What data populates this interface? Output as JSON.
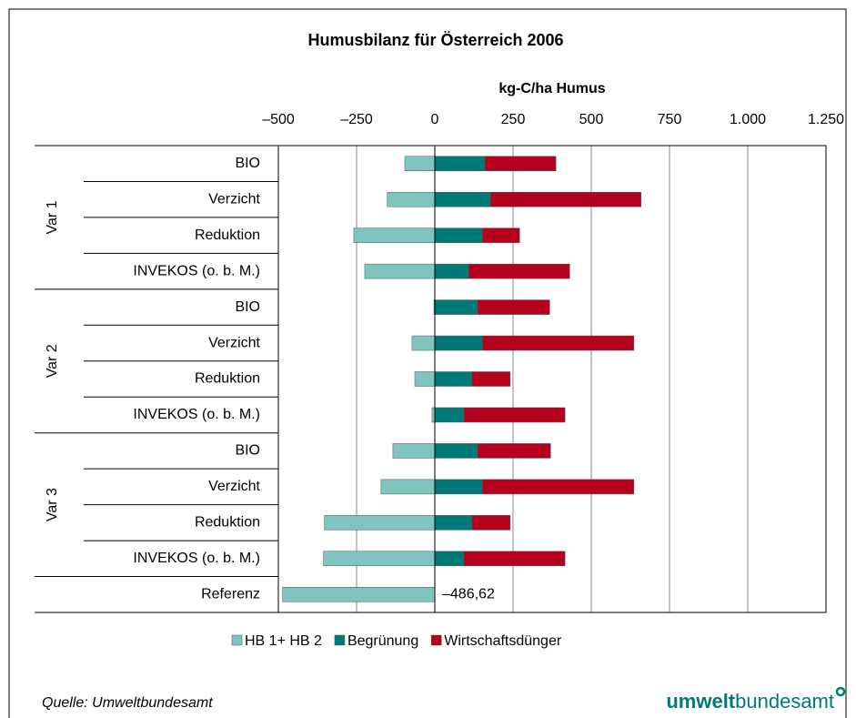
{
  "chart_data": {
    "type": "stacked-barh",
    "title": "Humusbilanz für Österreich 2006",
    "xlabel": "kg-C/ha Humus",
    "source": "Quelle: Umweltbundesamt",
    "logo": {
      "bold": "umwelt",
      "regular": "bundesamt"
    },
    "categories": [
      "BIO",
      "Verzicht",
      "Reduktion",
      "INVEKOS (o. b. M.)",
      "BIO",
      "Verzicht",
      "Reduktion",
      "INVEKOS (o. b. M.)",
      "BIO",
      "Verzicht",
      "Reduktion",
      "INVEKOS (o. b. M.)",
      "Referenz"
    ],
    "groups": [
      "Var 1",
      "Var 1",
      "Var 1",
      "Var 1",
      "Var 2",
      "Var 2",
      "Var 2",
      "Var 2",
      "Var 3",
      "Var 3",
      "Var 3",
      "Var 3",
      null
    ],
    "series": [
      {
        "name": "HB 1+ HB 2",
        "color": "#80c4c0",
        "values": [
          -96,
          -152,
          -259,
          -224,
          -3,
          -73,
          -64,
          -9,
          -134,
          -172,
          -353,
          -356,
          -486.62
        ],
        "value_labels": [
          null,
          null,
          null,
          null,
          null,
          null,
          null,
          null,
          null,
          null,
          null,
          null,
          "–486,62"
        ]
      },
      {
        "name": "Begrünung",
        "color": "#007a78",
        "values": [
          160,
          178,
          152,
          108,
          137,
          152,
          119,
          93,
          137,
          152,
          119,
          93,
          0
        ]
      },
      {
        "name": "Wirtschaftsdünger",
        "color": "#b5001e",
        "values": [
          227,
          481,
          119,
          323,
          230,
          484,
          122,
          323,
          233,
          484,
          122,
          323,
          0
        ]
      }
    ],
    "xlim": [
      -500,
      1250
    ],
    "xticks": [
      {
        "value": -500,
        "label": "–500"
      },
      {
        "value": -250,
        "label": "–250"
      },
      0,
      250,
      500,
      750,
      {
        "value": 1000,
        "label": "1.000"
      },
      {
        "value": 1250,
        "label": "1.250"
      }
    ],
    "grid": true
  }
}
